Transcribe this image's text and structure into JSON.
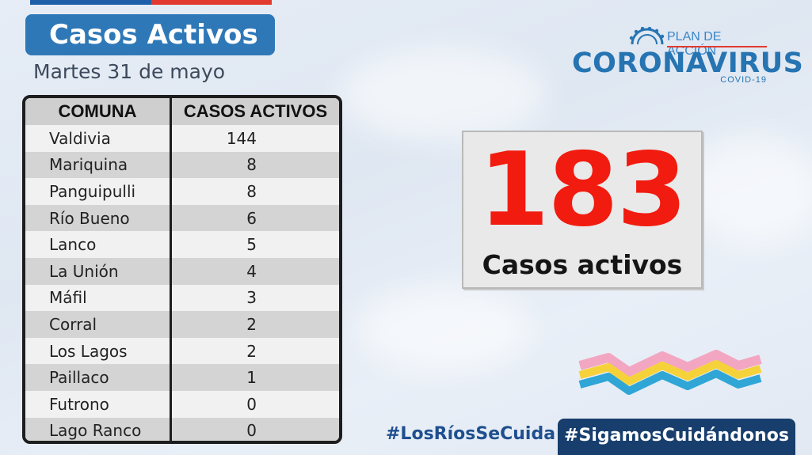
{
  "header": {
    "title": "Casos Activos",
    "date": "Martes 31 de mayo"
  },
  "table": {
    "columns": [
      "COMUNA",
      "CASOS ACTIVOS"
    ],
    "rows": [
      {
        "comuna": "Valdivia",
        "casos": "144"
      },
      {
        "comuna": "Mariquina",
        "casos": "8"
      },
      {
        "comuna": "Panguipulli",
        "casos": "8"
      },
      {
        "comuna": "Río Bueno",
        "casos": "6"
      },
      {
        "comuna": "Lanco",
        "casos": "5"
      },
      {
        "comuna": "La Unión",
        "casos": "4"
      },
      {
        "comuna": "Máfil",
        "casos": "3"
      },
      {
        "comuna": "Corral",
        "casos": "2"
      },
      {
        "comuna": "Los Lagos",
        "casos": "2"
      },
      {
        "comuna": "Paillaco",
        "casos": "1"
      },
      {
        "comuna": "Futrono",
        "casos": "0"
      },
      {
        "comuna": "Lago Ranco",
        "casos": "0"
      }
    ]
  },
  "logo": {
    "plan": "PLAN DE ACCIÓN",
    "name": "CORONAVIRUS",
    "sub": "COVID-19",
    "icon": "virus-icon"
  },
  "summary": {
    "total": "183",
    "label": "Casos activos",
    "color": "#f21b0f"
  },
  "footer": {
    "hashtag_left": "#LosRíosSeCuida",
    "hashtag_right": "#SigamosCuidándonos"
  },
  "colors": {
    "title_bg": "#2f78b7",
    "hashtag_bg": "#173e6d",
    "wave_pink": "#f3a6c2",
    "wave_yellow": "#f6d23a",
    "wave_blue": "#2fa6d6"
  }
}
